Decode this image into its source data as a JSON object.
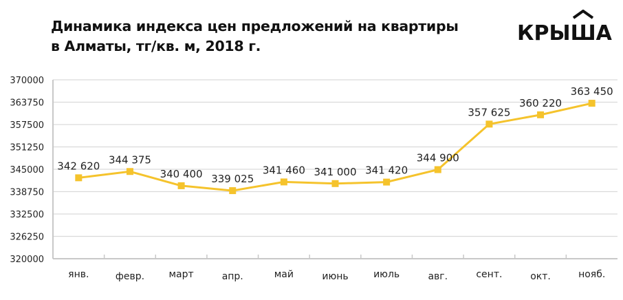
{
  "title_line1": "Динамика индекса цен предложений на квартиры",
  "title_line2": "в Алматы, тг/кв. м, 2018 г.",
  "logo_text": "КРЫША",
  "colors": {
    "line": "#F5C32C",
    "grid": "#D9D9D9",
    "axis": "#C8C8C8"
  },
  "chart_data": {
    "type": "line",
    "title": "Динамика индекса цен предложений на квартиры в Алматы, тг/кв. м, 2018 г.",
    "xlabel": "",
    "ylabel": "",
    "ylim": [
      320000,
      370000
    ],
    "yticks": [
      320000,
      326250,
      332500,
      338750,
      345000,
      351250,
      357500,
      363750,
      370000
    ],
    "grid": true,
    "categories": [
      "янв.",
      "февр.",
      "март",
      "апр.",
      "май",
      "июнь",
      "июль",
      "авг.",
      "сент.",
      "окт.",
      "нояб."
    ],
    "values": [
      342620,
      344375,
      340400,
      339025,
      341460,
      341000,
      341420,
      344900,
      357625,
      360220,
      363450
    ],
    "value_labels": [
      "342 620",
      "344 375",
      "340 400",
      "339 025",
      "341 460",
      "341 000",
      "341 420",
      "344 900",
      "357 625",
      "360 220",
      "363 450"
    ]
  }
}
